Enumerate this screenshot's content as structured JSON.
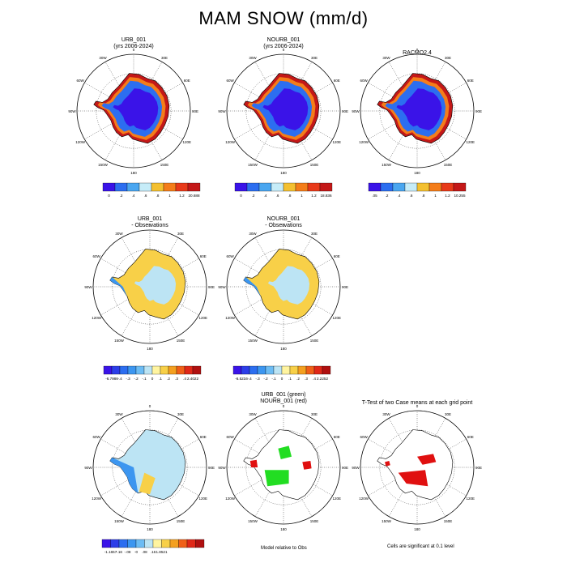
{
  "title": "MAM SNOW (mm/d)",
  "panels": [
    {
      "title": "URB_001",
      "subtitle": "(yrs 2006-2024)"
    },
    {
      "title": "NOURB_001",
      "subtitle": "(yrs 2006-2024)"
    },
    {
      "title": "RACMO2.4",
      "subtitle": ""
    },
    {
      "title": "URB_001",
      "subtitle": "- Observations"
    },
    {
      "title": "NOURB_001",
      "subtitle": "- Observations"
    },
    {
      "title": "",
      "subtitle": ""
    },
    {
      "title": "URB_001 (green)",
      "subtitle": "NOURB_001 (red)"
    },
    {
      "title": "T-Test of two Case means at each grid point",
      "subtitle": ""
    }
  ],
  "notes": {
    "model_relative": "Model relative to Obs",
    "significance": "Cells are significant at 0.1 level"
  },
  "map_labels": {
    "lon": [
      "0",
      "30E",
      "60E",
      "90E",
      "120E",
      "150E",
      "180",
      "150W",
      "120W",
      "90W",
      "60W",
      "30W"
    ]
  },
  "colorbars": [
    {
      "labels": [
        "0",
        ".2",
        ".4",
        ".6",
        ".8",
        "1",
        "1.2",
        "20.688"
      ],
      "colors": [
        "#3a13e8",
        "#2c6ef0",
        "#4aa6f0",
        "#c6ecf8",
        "#f4c030",
        "#f47d1a",
        "#e83a1a",
        "#c41818"
      ]
    },
    {
      "labels": [
        "0",
        ".2",
        ".4",
        ".6",
        ".8",
        "1",
        "1.2",
        "18.836"
      ],
      "colors": [
        "#3a13e8",
        "#2c6ef0",
        "#4aa6f0",
        "#c6ecf8",
        "#f4c030",
        "#f47d1a",
        "#e83a1a",
        "#c41818"
      ]
    },
    {
      "labels": [
        ".05",
        ".2",
        ".4",
        ".6",
        ".8",
        "1",
        "1.2",
        "10.255"
      ],
      "colors": [
        "#3a13e8",
        "#2c6ef0",
        "#4aa6f0",
        "#c6ecf8",
        "#f4c030",
        "#f47d1a",
        "#e83a1a",
        "#c41818"
      ]
    },
    {
      "labels": [
        "-6.7986",
        "-.4",
        "-.3",
        "-.2",
        "-.1",
        "0",
        ".1",
        ".2",
        ".3",
        ".4",
        "2.4022"
      ],
      "colors": [
        "#3a13e8",
        "#2c3ee8",
        "#2c6ef0",
        "#3c96f0",
        "#6cbcf4",
        "#bce4f4",
        "#fff4a0",
        "#f8d048",
        "#f4a020",
        "#f06018",
        "#e02818",
        "#b01010"
      ]
    },
    {
      "labels": [
        "-6.5234",
        "-.4",
        "-.3",
        "-.2",
        "-.1",
        "0",
        ".1",
        ".2",
        ".3",
        ".4",
        "2.2252"
      ],
      "colors": [
        "#3a13e8",
        "#2c3ee8",
        "#2c6ef0",
        "#3c96f0",
        "#6cbcf4",
        "#bce4f4",
        "#fff4a0",
        "#f8d048",
        "#f4a020",
        "#f06018",
        "#e02818",
        "#b01010"
      ]
    },
    {
      "labels": [
        "-1.1657",
        "-.16",
        "-.08",
        "-0",
        ".08",
        ".16",
        "1.8521"
      ],
      "colors": [
        "#3a13e8",
        "#2c3ee8",
        "#2c6ef0",
        "#3c96f0",
        "#6cbcf4",
        "#bce4f4",
        "#fff4a0",
        "#f8d048",
        "#f4a020",
        "#f06018",
        "#e02818",
        "#b01010"
      ]
    }
  ],
  "palette": {
    "interior_low": "#3a13e8",
    "interior_mid": "#2c6ef0",
    "coast": "#f47d1a",
    "edge": "#c41818",
    "diff_pos": "#f8d048",
    "diff_neg": "#3c96f0",
    "diff_neutral": "#bce4f4",
    "sig_green": "#22dd22",
    "sig_red": "#e01010"
  }
}
